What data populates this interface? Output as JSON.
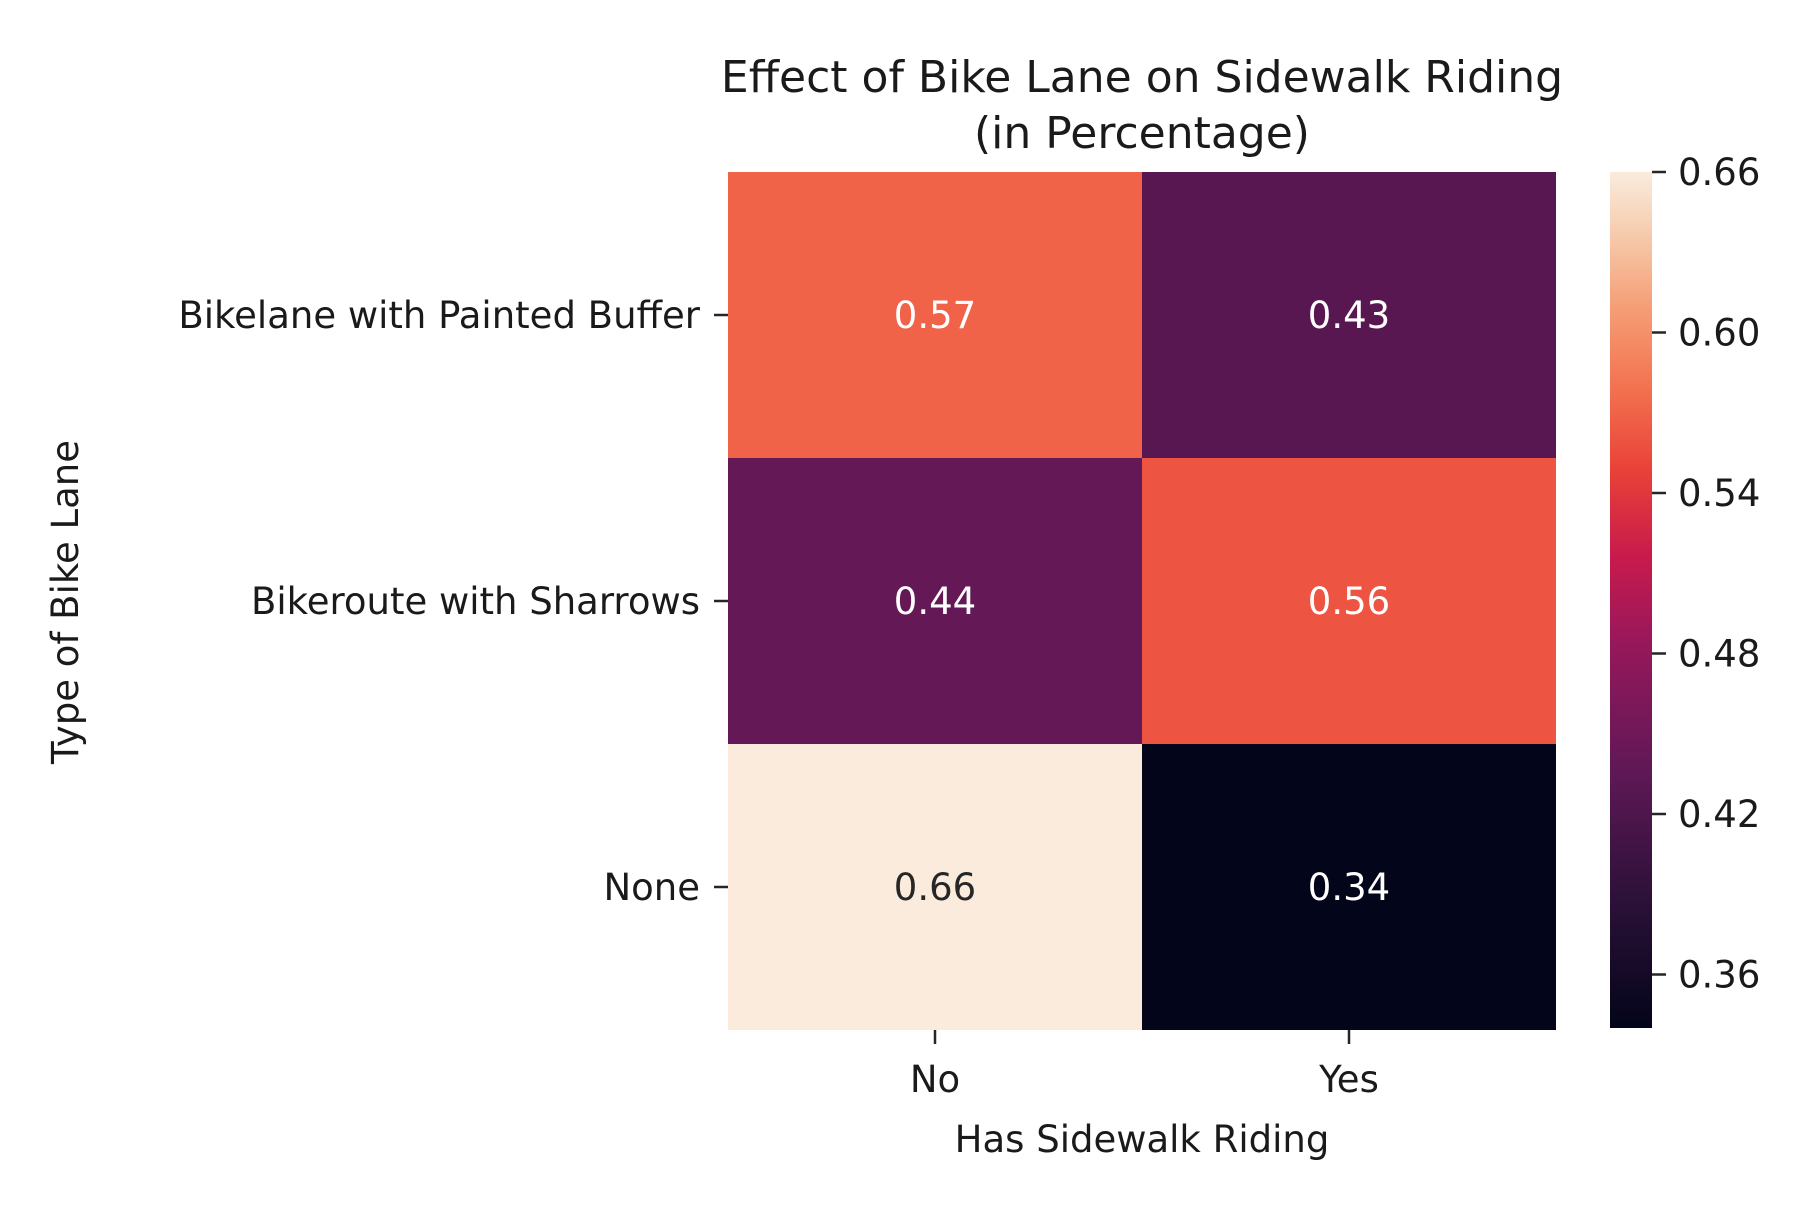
{
  "chart_data": {
    "type": "heatmap",
    "title": [
      "Effect of Bike Lane on Sidewalk Riding",
      "(in Percentage)"
    ],
    "xlabel": "Has Sidewalk Riding",
    "ylabel": "Type of Bike Lane",
    "x_categories": [
      "No",
      "Yes"
    ],
    "y_categories": [
      "Bikelane with Painted Buffer",
      "Bikeroute with Sharrows",
      "None"
    ],
    "values": [
      [
        0.57,
        0.43
      ],
      [
        0.44,
        0.56
      ],
      [
        0.66,
        0.34
      ]
    ],
    "value_labels": [
      [
        "0.57",
        "0.43"
      ],
      [
        "0.44",
        "0.56"
      ],
      [
        "0.66",
        "0.34"
      ]
    ],
    "colorbar": {
      "min": 0.34,
      "max": 0.66,
      "ticks": [
        0.36,
        0.42,
        0.48,
        0.54,
        0.6,
        0.66
      ],
      "tick_labels": [
        "0.36",
        "0.42",
        "0.48",
        "0.54",
        "0.60",
        "0.66"
      ],
      "colormap": "rocket"
    },
    "colors": {
      "low": "#03051a",
      "high": "#faebdd",
      "dark_text": "#262626",
      "light_text": "#ffffff"
    },
    "grid": false,
    "legend": "colorbar-right"
  }
}
